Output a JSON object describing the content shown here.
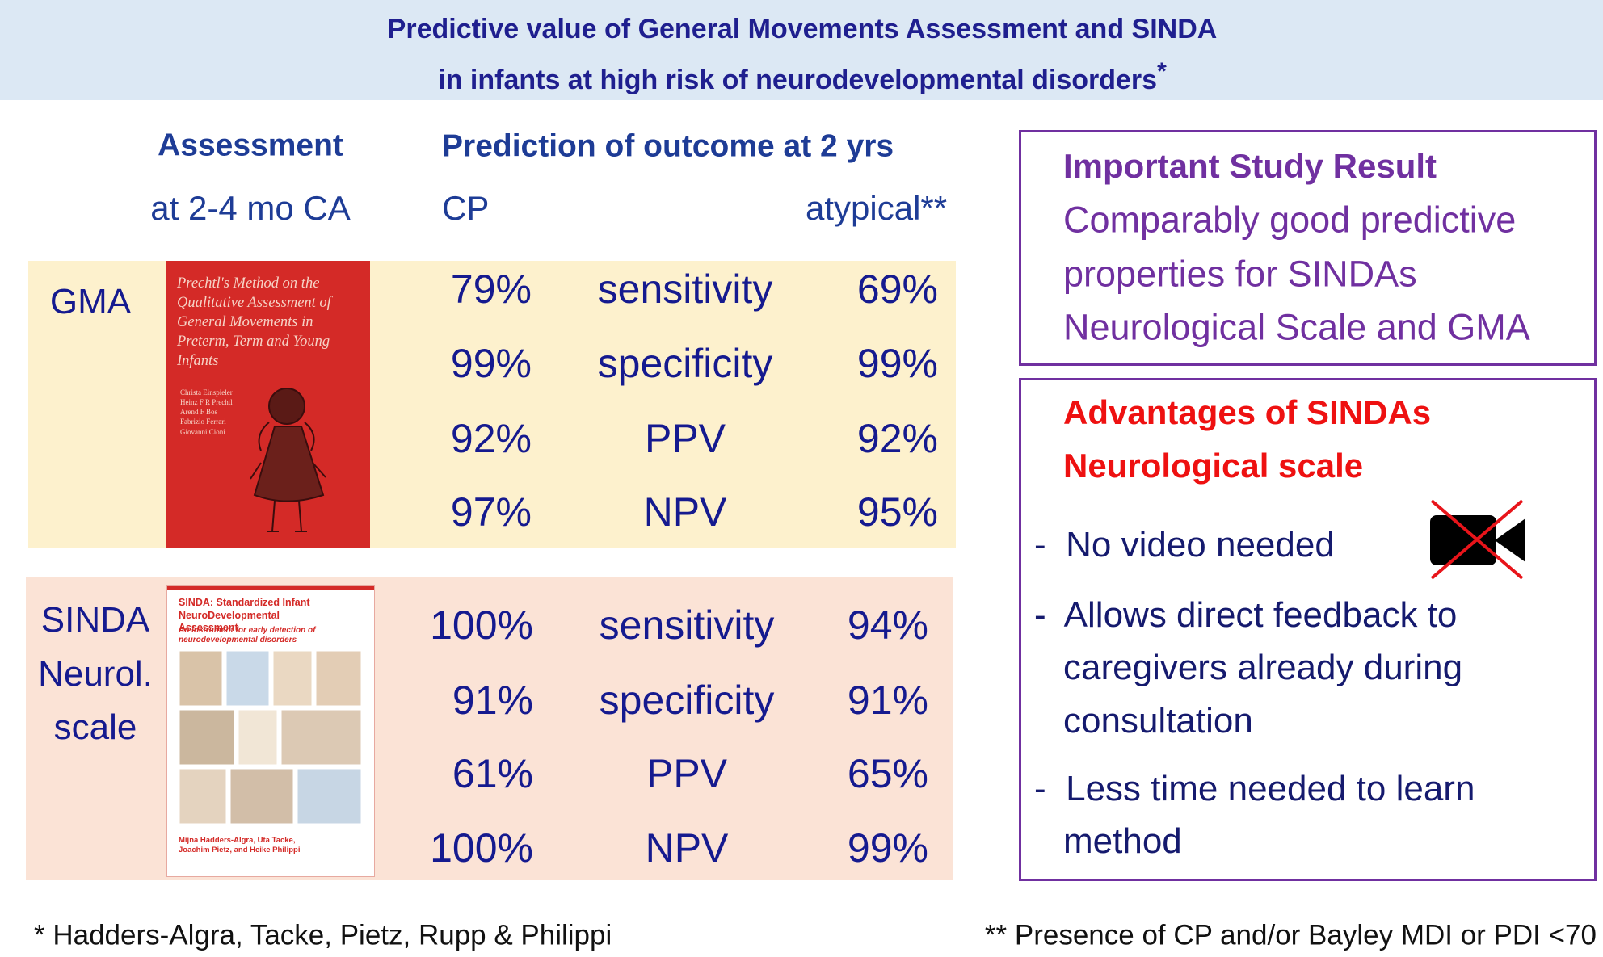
{
  "header": {
    "title_line1": "Predictive value of General Movements Assessment and SINDA",
    "title_line2": "in infants at high risk of neurodevelopmental disorders",
    "title_mark": "*"
  },
  "columns": {
    "assessment": "Assessment",
    "assessment_age": "at 2-4 mo CA",
    "prediction": "Prediction of outcome at 2 yrs",
    "cp": "CP",
    "atypical": "atypical**"
  },
  "groups": [
    {
      "label_lines": [
        "GMA"
      ],
      "cover": {
        "title": "Prechtl's Method on the Qualitative Assessment of General Movements in Preterm, Term and Young Infants",
        "authors": [
          "Christa Einspieler",
          "Heinz F R Prechtl",
          "Arend F Bos",
          "Fabrizio Ferrari",
          "Giovanni Cioni"
        ]
      },
      "rows": [
        {
          "cp": "79%",
          "measure": "sensitivity",
          "atypical": "69%"
        },
        {
          "cp": "99%",
          "measure": "specificity",
          "atypical": "99%"
        },
        {
          "cp": "92%",
          "measure": "PPV",
          "atypical": "92%"
        },
        {
          "cp": "97%",
          "measure": "NPV",
          "atypical": "95%"
        }
      ]
    },
    {
      "label_lines": [
        "SINDA",
        "Neurol.",
        "scale"
      ],
      "cover": {
        "title": "SINDA: Standardized Infant NeuroDevelopmental Assessment",
        "subtitle": "An instrument for early detection of neurodevelopmental disorders",
        "authors": [
          "Mijna Hadders-Algra, Uta Tacke,",
          "Joachim Pietz, and Heike Philippi"
        ]
      },
      "rows": [
        {
          "cp": "100%",
          "measure": "sensitivity",
          "atypical": "94%"
        },
        {
          "cp": "91%",
          "measure": "specificity",
          "atypical": "91%"
        },
        {
          "cp": "61%",
          "measure": "PPV",
          "atypical": "65%"
        },
        {
          "cp": "100%",
          "measure": "NPV",
          "atypical": "99%"
        }
      ]
    }
  ],
  "result_box": {
    "title": "Important Study Result",
    "lines": [
      "Comparably good predictive",
      "properties for SINDAs",
      "Neurological Scale and GMA"
    ]
  },
  "advantages_box": {
    "title_lines": [
      "Advantages of SINDAs",
      "Neurological scale"
    ],
    "items": [
      {
        "lines": [
          "-  No video needed"
        ]
      },
      {
        "lines": [
          "-  Allows direct feedback to",
          "caregivers already during",
          "consultation"
        ]
      },
      {
        "lines": [
          "-  Less time needed to learn",
          "method"
        ]
      }
    ]
  },
  "footnotes": {
    "left": "* Hadders-Algra, Tacke, Pietz, Rupp & Philippi",
    "right": "** Presence of CP and/or Bayley MDI or PDI <70"
  }
}
